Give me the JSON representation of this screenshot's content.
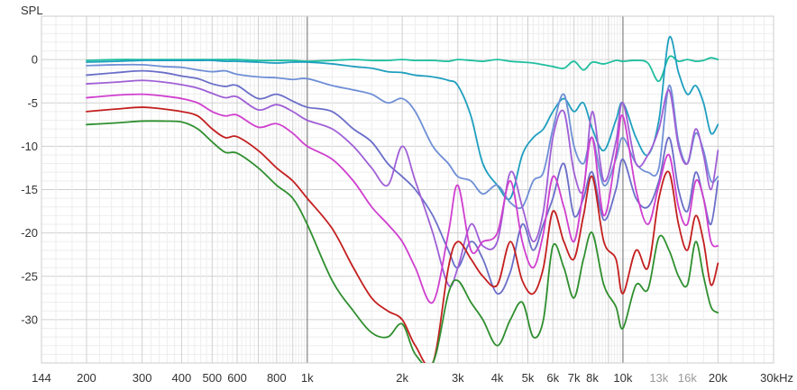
{
  "chart_data": {
    "type": "line",
    "ylabel": "SPL",
    "xscale": "log",
    "xlim": [
      144,
      30000
    ],
    "ylim": [
      -35,
      5
    ],
    "grid": true,
    "y_ticks": [
      {
        "value": 0,
        "label": "0"
      },
      {
        "value": -5,
        "label": "-5"
      },
      {
        "value": -10,
        "label": "-10"
      },
      {
        "value": -15,
        "label": "-15"
      },
      {
        "value": -20,
        "label": "-20"
      },
      {
        "value": -25,
        "label": "-25"
      },
      {
        "value": -30,
        "label": "-30"
      }
    ],
    "x_ticks": [
      {
        "value": 144,
        "label": "144",
        "muted": false
      },
      {
        "value": 200,
        "label": "200",
        "muted": false
      },
      {
        "value": 300,
        "label": "300",
        "muted": false
      },
      {
        "value": 400,
        "label": "400",
        "muted": false
      },
      {
        "value": 500,
        "label": "500",
        "muted": false
      },
      {
        "value": 600,
        "label": "600",
        "muted": false
      },
      {
        "value": 800,
        "label": "800",
        "muted": false
      },
      {
        "value": 1000,
        "label": "1k",
        "muted": false
      },
      {
        "value": 2000,
        "label": "2k",
        "muted": false
      },
      {
        "value": 3000,
        "label": "3k",
        "muted": false
      },
      {
        "value": 4000,
        "label": "4k",
        "muted": false
      },
      {
        "value": 5000,
        "label": "5k",
        "muted": false
      },
      {
        "value": 6000,
        "label": "6k",
        "muted": false
      },
      {
        "value": 7000,
        "label": "7k",
        "muted": false
      },
      {
        "value": 8000,
        "label": "8k",
        "muted": false
      },
      {
        "value": 10000,
        "label": "10k",
        "muted": false
      },
      {
        "value": 13000,
        "label": "13k",
        "muted": true
      },
      {
        "value": 16000,
        "label": "16k",
        "muted": true
      },
      {
        "value": 20000,
        "label": "20k",
        "muted": false
      },
      {
        "value": 30000,
        "label": "30kHz",
        "muted": false
      }
    ],
    "x": [
      200,
      250,
      300,
      350,
      400,
      450,
      500,
      550,
      600,
      700,
      800,
      900,
      1000,
      1200,
      1400,
      1600,
      1800,
      2000,
      2200,
      2500,
      2800,
      3000,
      3300,
      3600,
      4000,
      4400,
      4800,
      5200,
      5600,
      6000,
      6500,
      7000,
      7500,
      8000,
      8700,
      9500,
      10000,
      11000,
      12000,
      13000,
      14000,
      15000,
      16000,
      17000,
      18000,
      19000,
      20000
    ],
    "series": [
      {
        "color": "#1fbf9f",
        "values": [
          -0.1,
          0,
          0,
          0,
          0,
          0,
          0,
          0,
          0,
          -0.1,
          -0.1,
          -0.1,
          -0.2,
          -0.1,
          0,
          -0.1,
          -0.1,
          0,
          -0.1,
          -0.1,
          -0.2,
          0,
          -0.1,
          -0.2,
          0,
          -0.2,
          -0.3,
          -0.4,
          -0.6,
          -0.8,
          -1.0,
          -0.2,
          -1.2,
          -0.3,
          -0.5,
          -0.1,
          -0.2,
          -0.1,
          -0.4,
          -2.5,
          0.3,
          -0.2,
          0,
          -0.2,
          -0.1,
          0.2,
          0
        ]
      },
      {
        "color": "#1f9fbf",
        "values": [
          -0.3,
          -0.2,
          -0.1,
          -0.1,
          -0.1,
          -0.1,
          -0.1,
          -0.2,
          -0.2,
          -0.3,
          -0.4,
          -0.3,
          -0.3,
          -0.5,
          -0.8,
          -1.0,
          -1.4,
          -1.5,
          -1.8,
          -2.0,
          -2.4,
          -3.0,
          -6.5,
          -12.0,
          -14.5,
          -16.0,
          -11.0,
          -9.0,
          -8.0,
          -6.0,
          -4.5,
          -6.0,
          -5.0,
          -8.0,
          -10.5,
          -7.0,
          -5.0,
          -9.0,
          -11.0,
          -7.0,
          2.5,
          -1.5,
          -4.0,
          -3.0,
          -5.0,
          -8.5,
          -7.5
        ]
      },
      {
        "color": "#6f8fd6",
        "values": [
          -0.7,
          -0.6,
          -0.6,
          -0.8,
          -0.9,
          -1.2,
          -1.4,
          -1.3,
          -1.7,
          -2.0,
          -2.1,
          -2.3,
          -2.2,
          -3.0,
          -3.5,
          -4.0,
          -5.0,
          -4.5,
          -6.0,
          -10.0,
          -12.0,
          -13.5,
          -14.0,
          -15.5,
          -14.5,
          -16.5,
          -17.0,
          -14.0,
          -13.0,
          -8.0,
          -4.0,
          -10.0,
          -12.0,
          -9.0,
          -14.5,
          -11.5,
          -9.0,
          -12.0,
          -13.0,
          -12.5,
          -3.0,
          -9.5,
          -12.0,
          -8.5,
          -10.5,
          -14.0,
          -13.5
        ]
      },
      {
        "color": "#6a6ec8",
        "values": [
          -1.8,
          -1.5,
          -1.3,
          -1.5,
          -1.9,
          -2.2,
          -2.8,
          -3.1,
          -3.0,
          -4.5,
          -4.0,
          -4.8,
          -5.5,
          -6.0,
          -8.0,
          -9.5,
          -12.0,
          -13.5,
          -15.0,
          -18.0,
          -22.0,
          -24.0,
          -21.0,
          -23.0,
          -27.0,
          -24.5,
          -19.0,
          -22.0,
          -19.0,
          -16.0,
          -12.0,
          -18.0,
          -16.0,
          -13.0,
          -18.5,
          -15.0,
          -11.5,
          -16.0,
          -17.0,
          -14.0,
          -9.0,
          -15.0,
          -17.5,
          -13.0,
          -16.0,
          -19.0,
          -14.0
        ]
      },
      {
        "color": "#9f5fd6",
        "values": [
          -2.8,
          -2.6,
          -2.4,
          -2.6,
          -2.9,
          -3.3,
          -3.9,
          -4.4,
          -4.3,
          -5.8,
          -5.2,
          -6.0,
          -7.0,
          -8.0,
          -10.0,
          -12.5,
          -14.5,
          -10.0,
          -14.0,
          -20.0,
          -26.0,
          -24.0,
          -19.0,
          -21.5,
          -21.0,
          -13.0,
          -17.0,
          -21.0,
          -17.5,
          -9.0,
          -6.0,
          -13.0,
          -15.0,
          -6.0,
          -14.0,
          -9.5,
          -5.0,
          -12.0,
          -11.0,
          -8.0,
          -3.5,
          -10.0,
          -12.0,
          -8.0,
          -11.0,
          -15.0,
          -10.5
        ]
      },
      {
        "color": "#cf3fcf",
        "values": [
          -4.4,
          -4.1,
          -4.0,
          -4.2,
          -4.5,
          -5.0,
          -6.0,
          -6.5,
          -6.4,
          -7.8,
          -7.4,
          -8.5,
          -10.0,
          -11.5,
          -14.0,
          -17.0,
          -19.0,
          -21.0,
          -24.0,
          -28.0,
          -20.0,
          -14.5,
          -22.0,
          -21.0,
          -20.0,
          -14.0,
          -21.0,
          -24.0,
          -20.0,
          -13.5,
          -17.0,
          -21.0,
          -15.0,
          -9.0,
          -18.0,
          -11.0,
          -6.5,
          -15.0,
          -19.0,
          -14.5,
          -11.0,
          -17.0,
          -19.0,
          -14.0,
          -16.0,
          -21.0,
          -21.5
        ]
      },
      {
        "color": "#c41f1f",
        "values": [
          -6.0,
          -5.7,
          -5.5,
          -5.7,
          -6.0,
          -6.5,
          -8.0,
          -9.0,
          -8.9,
          -10.5,
          -12.5,
          -14.0,
          -16.0,
          -19.5,
          -24.0,
          -27.5,
          -29.0,
          -30.0,
          -33.0,
          -35.0,
          -24.0,
          -21.0,
          -23.0,
          -25.0,
          -26.0,
          -21.0,
          -25.5,
          -27.0,
          -24.0,
          -17.5,
          -21.0,
          -23.0,
          -18.0,
          -13.5,
          -21.0,
          -23.0,
          -27.0,
          -22.0,
          -24.0,
          -16.0,
          -13.0,
          -19.0,
          -22.0,
          -18.0,
          -21.0,
          -26.0,
          -23.5
        ]
      },
      {
        "color": "#2f8f2f",
        "values": [
          -7.5,
          -7.3,
          -7.1,
          -7.1,
          -7.2,
          -8.0,
          -9.5,
          -10.7,
          -10.8,
          -12.5,
          -14.5,
          -16.0,
          -19.0,
          -25.5,
          -29.0,
          -31.5,
          -32.0,
          -30.5,
          -34.0,
          -35.0,
          -27.0,
          -25.5,
          -28.0,
          -30.0,
          -33.0,
          -30.0,
          -28.0,
          -32.0,
          -30.0,
          -21.5,
          -24.0,
          -27.5,
          -23.0,
          -20.0,
          -26.0,
          -28.5,
          -31.0,
          -26.0,
          -26.5,
          -20.5,
          -22.0,
          -25.0,
          -26.0,
          -21.0,
          -25.0,
          -28.5,
          -29.2
        ]
      }
    ]
  }
}
